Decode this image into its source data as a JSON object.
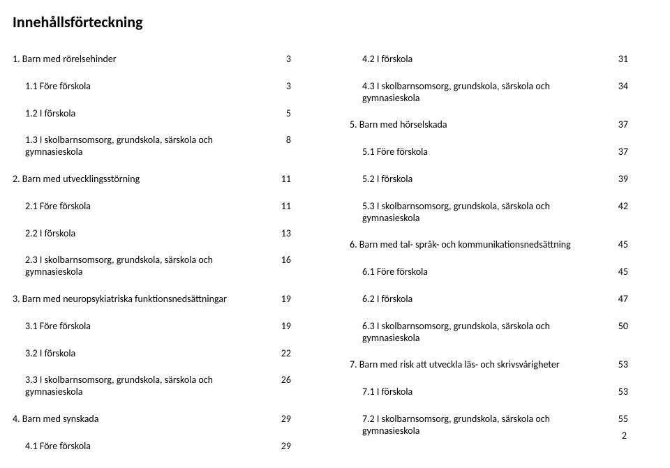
{
  "title": "Innehållsförteckning",
  "page_number": "2",
  "columns": {
    "left": [
      {
        "label": "1. Barn med rörelsehinder",
        "page": "3",
        "indent": false
      },
      {
        "label": "1.1 Före förskola",
        "page": "3",
        "indent": true
      },
      {
        "label": "1.2 I förskola",
        "page": "5",
        "indent": true
      },
      {
        "label": "1.3 I skolbarnsomsorg, grundskola, särskola och gymnasieskola",
        "page": "8",
        "indent": true
      },
      {
        "label": "2. Barn med utvecklingsstörning",
        "page": "11",
        "indent": false
      },
      {
        "label": "2.1 Före förskola",
        "page": "11",
        "indent": true
      },
      {
        "label": "2.2 I förskola",
        "page": "13",
        "indent": true
      },
      {
        "label": "2.3 I skolbarnsomsorg, grundskola, särskola och gymnasieskola",
        "page": "16",
        "indent": true
      },
      {
        "label": "3. Barn med neuropsykiatriska funktionsnedsättningar",
        "page": "19",
        "indent": false
      },
      {
        "label": "3.1 Före förskola",
        "page": "19",
        "indent": true
      },
      {
        "label": "3.2 I förskola",
        "page": "22",
        "indent": true
      },
      {
        "label": "3.3 I skolbarnsomsorg, grundskola, särskola och gymnasieskola",
        "page": "26",
        "indent": true
      },
      {
        "label": "4. Barn med synskada",
        "page": "29",
        "indent": false
      },
      {
        "label": "4.1 Före förskola",
        "page": "29",
        "indent": true
      }
    ],
    "right": [
      {
        "label": "4.2 I förskola",
        "page": "31",
        "indent": true
      },
      {
        "label": "4.3 I skolbarnsomsorg, grundskola, särskola och gymnasieskola",
        "page": "34",
        "indent": true
      },
      {
        "label": "5. Barn med hörselskada",
        "page": "37",
        "indent": false
      },
      {
        "label": "5.1 Före förskola",
        "page": "37",
        "indent": true
      },
      {
        "label": "5.2 I förskola",
        "page": "39",
        "indent": true
      },
      {
        "label": "5.3 I skolbarnsomsorg, grundskola, särskola och gymnasieskola",
        "page": "42",
        "indent": true
      },
      {
        "label": "6. Barn med tal- språk- och kommunikationsnedsättning",
        "page": "45",
        "indent": false
      },
      {
        "label": "6.1 Före förskola",
        "page": "45",
        "indent": true
      },
      {
        "label": "6.2 I förskola",
        "page": "47",
        "indent": true
      },
      {
        "label": "6.3 I skolbarnsomsorg, grundskola, särskola och gymnasieskola",
        "page": "50",
        "indent": true
      },
      {
        "label": "7. Barn med risk att utveckla läs- och skrivsvårigheter",
        "page": "53",
        "indent": false
      },
      {
        "label": "7.1 I förskola",
        "page": "53",
        "indent": true
      },
      {
        "label": "7.2 I skolbarnsomsorg, grundskola, särskola och gymnasieskola",
        "page": "55",
        "indent": true
      }
    ]
  }
}
